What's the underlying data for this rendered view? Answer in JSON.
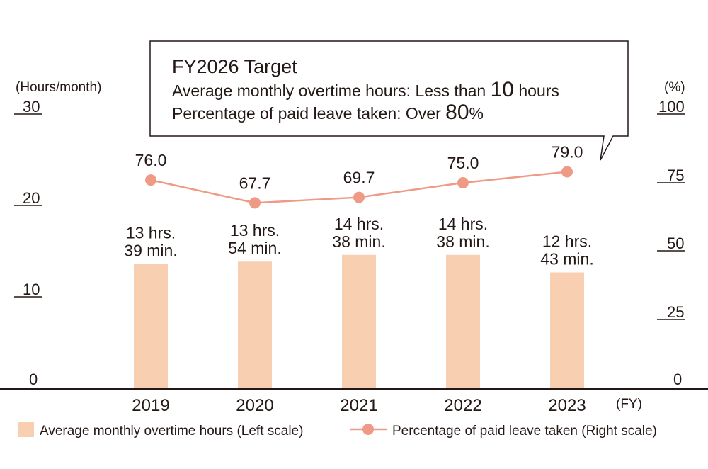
{
  "chart_data": {
    "type": "bar+line",
    "categories": [
      "2019",
      "2020",
      "2021",
      "2022",
      "2023"
    ],
    "x_unit": "(FY)",
    "series": [
      {
        "name": "Average monthly overtime hours (Left scale)",
        "kind": "bar",
        "axis": "left",
        "color": "#F8CFB0",
        "values": [
          13.65,
          13.9,
          14.63,
          14.63,
          12.72
        ],
        "labels": [
          [
            "13 hrs.",
            "39 min."
          ],
          [
            "13 hrs.",
            "54 min."
          ],
          [
            "14 hrs.",
            "38 min."
          ],
          [
            "14 hrs.",
            "38 min."
          ],
          [
            "12 hrs.",
            "43 min."
          ]
        ]
      },
      {
        "name": "Percentage of paid leave taken (Right scale)",
        "kind": "line",
        "axis": "right",
        "color": "#EE9A85",
        "values": [
          76.0,
          67.7,
          69.7,
          75.0,
          79.0
        ],
        "labels": [
          "76.0",
          "67.7",
          "69.7",
          "75.0",
          "79.0"
        ]
      }
    ],
    "left_axis": {
      "unit": "(Hours/month)",
      "ticks": [
        "0",
        "10",
        "20",
        "30"
      ],
      "range": [
        0,
        30
      ]
    },
    "right_axis": {
      "unit": "(%)",
      "ticks": [
        "0",
        "25",
        "50",
        "75",
        "100"
      ],
      "range": [
        0,
        100
      ]
    },
    "callout": {
      "title": "FY2026 Target",
      "line1_prefix": "Average monthly overtime hours: Less than ",
      "line1_value": "10",
      "line1_suffix": " hours",
      "line2_prefix": "Percentage of paid leave taken: Over ",
      "line2_value": "80",
      "line2_suffix": "%"
    },
    "legend": {
      "position": "bottom"
    }
  }
}
